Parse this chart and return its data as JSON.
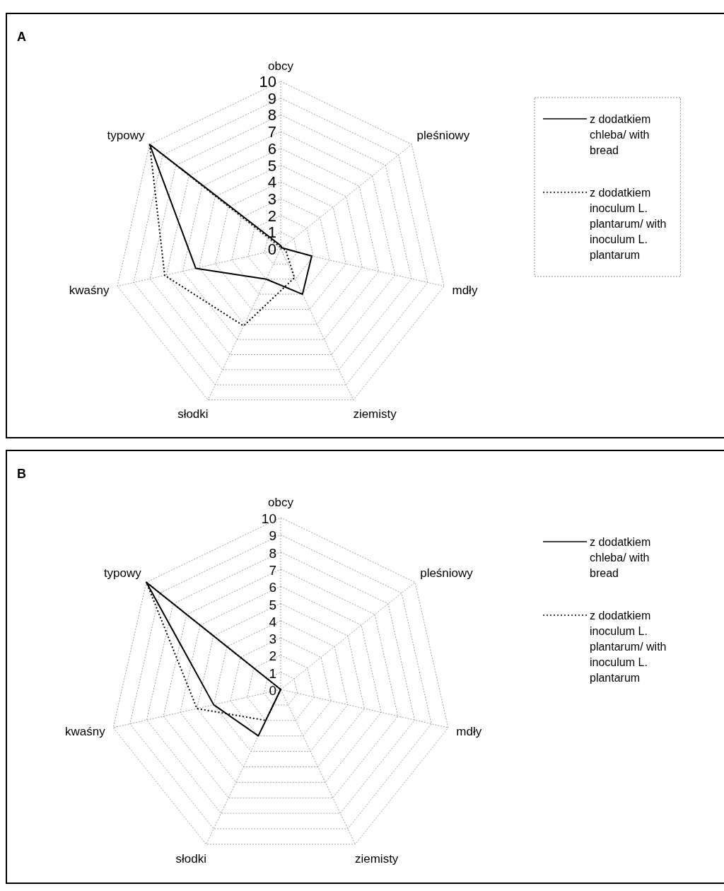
{
  "chart_data": [
    {
      "type": "radar",
      "title": "A",
      "categories": [
        "obcy",
        "pleśniowy",
        "mdły",
        "ziemisty",
        "słodki",
        "kwaśny",
        "typowy"
      ],
      "ylim": [
        0,
        10
      ],
      "yticks": [
        0,
        1,
        2,
        3,
        4,
        5,
        6,
        7,
        8,
        9,
        10
      ],
      "grid": true,
      "legend": "right",
      "marker": "none",
      "series": [
        {
          "name": "z dodatkiem chleba/ with bread",
          "color": "#000000",
          "line_style": "solid",
          "values": [
            0.2,
            0.1,
            1.9,
            3.0,
            2.0,
            5.2,
            10
          ]
        },
        {
          "name": "z dodatkiem inoculum L. plantarum/ with inoculum L. plantarum",
          "color": "#000000",
          "line_style": "dotted",
          "values": [
            0.1,
            0.1,
            0.3,
            1.9,
            5.1,
            7.1,
            10
          ]
        }
      ]
    },
    {
      "type": "radar",
      "title": "B",
      "categories": [
        "obcy",
        "pleśniowy",
        "mdły",
        "ziemisty",
        "słodki",
        "kwaśny",
        "typowy"
      ],
      "ylim": [
        0,
        10
      ],
      "yticks": [
        0,
        1,
        2,
        3,
        4,
        5,
        6,
        7,
        8,
        9,
        10
      ],
      "grid": true,
      "legend": "right",
      "marker": "none",
      "series": [
        {
          "name": "z dodatkiem chleba/ with bread",
          "color": "#000000",
          "line_style": "solid",
          "values": [
            0,
            0,
            0,
            0,
            3.0,
            4.0,
            10
          ]
        },
        {
          "name": "z dodatkiem inoculum L. plantarum/ with inoculum L. plantarum",
          "color": "#000000",
          "line_style": "dotted",
          "values": [
            0,
            0,
            0,
            0,
            2.0,
            5.0,
            10
          ]
        }
      ]
    }
  ]
}
